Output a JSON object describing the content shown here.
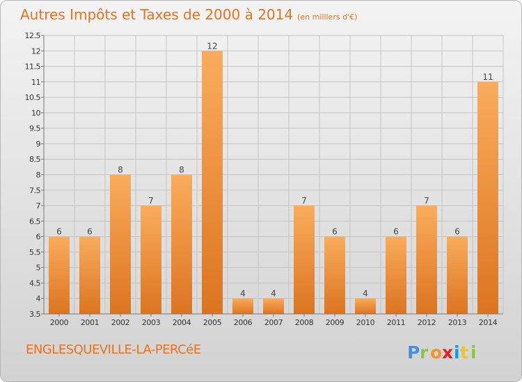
{
  "header": {
    "title": "Autres Impôts et Taxes de 2000 à 2014",
    "subtitle": "(en milliers d'€)"
  },
  "footer": {
    "commune": "ENGLESQUEVILLE-LA-PERCéE",
    "brand": "Proxiti"
  },
  "colors": {
    "title": "#e8721d",
    "bar_light": "#f7a655",
    "bar_dark": "#e07a22"
  },
  "chart_data": {
    "type": "bar",
    "categories": [
      "2000",
      "2001",
      "2002",
      "2003",
      "2004",
      "2005",
      "2006",
      "2007",
      "2008",
      "2009",
      "2010",
      "2011",
      "2012",
      "2013",
      "2014"
    ],
    "values": [
      6,
      6,
      8,
      7,
      8,
      12,
      4,
      4,
      7,
      6,
      4,
      6,
      7,
      6,
      11
    ],
    "ylim": [
      3.5,
      12.5
    ],
    "yticks": [
      "3.5",
      "4",
      "4.5",
      "5",
      "5.5",
      "6",
      "6.5",
      "7",
      "7.5",
      "8",
      "8.5",
      "9",
      "9.5",
      "10",
      "10.5",
      "11",
      "11.5",
      "12",
      "12.5"
    ],
    "grid": true,
    "legend": "none"
  }
}
